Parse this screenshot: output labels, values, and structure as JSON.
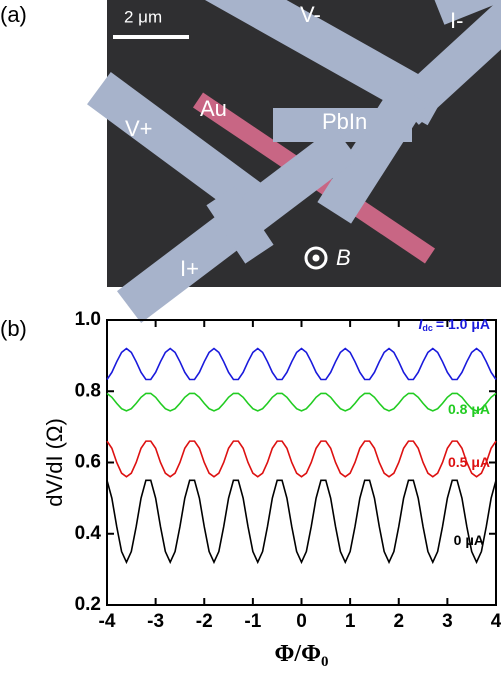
{
  "panel_a": {
    "label": "(a)",
    "scale_bar": "2 μm",
    "labels": [
      "V-",
      "I-",
      "Au",
      "V+",
      "PbIn",
      "I+"
    ],
    "field_symbol": "B"
  },
  "chart_data": {
    "type": "line",
    "panel_label": "(b)",
    "ylabel": "dV/dI (Ω)",
    "xlabel": "Φ/Φ",
    "xlabel_subscript": "0",
    "xlim": [
      -4,
      4
    ],
    "ylim": [
      0.2,
      1.0
    ],
    "xticks": [
      -4,
      -3,
      -2,
      -1,
      0,
      1,
      2,
      3,
      4
    ],
    "yticks": [
      0.2,
      0.4,
      0.6,
      0.8,
      {
        "value": 1,
        "label": "1.0"
      }
    ],
    "x": [
      -4,
      -3.9,
      -3.8,
      -3.7,
      -3.6,
      -3.5,
      -3.4,
      -3.3,
      -3.2,
      -3.1,
      -3,
      -2.9,
      -2.8,
      -2.7,
      -2.6,
      -2.5,
      -2.4,
      -2.3,
      -2.2,
      -2.1,
      -2,
      -1.9,
      -1.8,
      -1.7,
      -1.6,
      -1.5,
      -1.4,
      -1.3,
      -1.2,
      -1.1,
      -1,
      -0.9,
      -0.8,
      -0.7,
      -0.6,
      -0.5,
      -0.4,
      -0.3,
      -0.2,
      -0.1,
      0,
      0.1,
      0.2,
      0.3,
      0.4,
      0.5,
      0.6,
      0.7,
      0.8,
      0.9,
      1,
      1.1,
      1.2,
      1.3,
      1.4,
      1.5,
      1.6,
      1.7,
      1.8,
      1.9,
      2,
      2.1,
      2.2,
      2.3,
      2.4,
      2.5,
      2.6,
      2.7,
      2.8,
      2.9,
      3,
      3.1,
      3.2,
      3.3,
      3.4,
      3.5,
      3.6,
      3.7,
      3.8,
      3.9,
      4
    ],
    "series": [
      {
        "name": "= 1.0 μA",
        "label_symbol": "I",
        "label_subscript": "dc",
        "color": "#1a1adc",
        "values": [
          0.833,
          0.853,
          0.883,
          0.909,
          0.92,
          0.909,
          0.883,
          0.853,
          0.833,
          0.833,
          0.853,
          0.883,
          0.909,
          0.92,
          0.909,
          0.883,
          0.853,
          0.833,
          0.833,
          0.853,
          0.883,
          0.909,
          0.92,
          0.909,
          0.883,
          0.853,
          0.833,
          0.833,
          0.853,
          0.883,
          0.909,
          0.92,
          0.909,
          0.883,
          0.853,
          0.833,
          0.833,
          0.853,
          0.883,
          0.909,
          0.92,
          0.909,
          0.883,
          0.853,
          0.833,
          0.833,
          0.853,
          0.883,
          0.909,
          0.92,
          0.909,
          0.883,
          0.853,
          0.833,
          0.833,
          0.853,
          0.883,
          0.909,
          0.92,
          0.909,
          0.883,
          0.853,
          0.833,
          0.833,
          0.853,
          0.883,
          0.909,
          0.92,
          0.909,
          0.883,
          0.853,
          0.833,
          0.833,
          0.853,
          0.883,
          0.909,
          0.92,
          0.909,
          0.883,
          0.853,
          0.833
        ]
      },
      {
        "name": "0.8 μA",
        "color": "#22cc22",
        "values": [
          0.794,
          0.783,
          0.766,
          0.751,
          0.745,
          0.751,
          0.766,
          0.783,
          0.794,
          0.794,
          0.783,
          0.766,
          0.751,
          0.745,
          0.751,
          0.766,
          0.783,
          0.794,
          0.794,
          0.783,
          0.766,
          0.751,
          0.745,
          0.751,
          0.766,
          0.783,
          0.794,
          0.794,
          0.783,
          0.766,
          0.751,
          0.745,
          0.751,
          0.766,
          0.783,
          0.794,
          0.794,
          0.783,
          0.766,
          0.751,
          0.745,
          0.751,
          0.766,
          0.783,
          0.794,
          0.794,
          0.783,
          0.766,
          0.751,
          0.745,
          0.751,
          0.766,
          0.783,
          0.794,
          0.794,
          0.783,
          0.766,
          0.751,
          0.745,
          0.751,
          0.766,
          0.783,
          0.794,
          0.794,
          0.783,
          0.766,
          0.751,
          0.745,
          0.751,
          0.766,
          0.783,
          0.794,
          0.794,
          0.783,
          0.766,
          0.751,
          0.745,
          0.751,
          0.766,
          0.783,
          0.794
        ]
      },
      {
        "name": "0.5 μA",
        "color": "#dd1111",
        "values": [
          0.66,
          0.64,
          0.6,
          0.57,
          0.56,
          0.57,
          0.6,
          0.64,
          0.66,
          0.66,
          0.64,
          0.6,
          0.57,
          0.56,
          0.57,
          0.6,
          0.64,
          0.66,
          0.66,
          0.64,
          0.6,
          0.57,
          0.56,
          0.57,
          0.6,
          0.64,
          0.66,
          0.66,
          0.64,
          0.6,
          0.57,
          0.56,
          0.57,
          0.6,
          0.64,
          0.66,
          0.66,
          0.64,
          0.6,
          0.57,
          0.56,
          0.57,
          0.6,
          0.64,
          0.66,
          0.66,
          0.64,
          0.6,
          0.57,
          0.56,
          0.57,
          0.6,
          0.64,
          0.66,
          0.66,
          0.64,
          0.6,
          0.57,
          0.56,
          0.57,
          0.6,
          0.64,
          0.66,
          0.66,
          0.64,
          0.6,
          0.57,
          0.56,
          0.57,
          0.6,
          0.64,
          0.66,
          0.66,
          0.64,
          0.6,
          0.57,
          0.56,
          0.57,
          0.6,
          0.64,
          0.66
        ]
      },
      {
        "name": "0 μA",
        "color": "#000000",
        "values": [
          0.55,
          0.5,
          0.42,
          0.35,
          0.32,
          0.35,
          0.42,
          0.5,
          0.55,
          0.55,
          0.5,
          0.42,
          0.35,
          0.32,
          0.35,
          0.42,
          0.5,
          0.55,
          0.55,
          0.5,
          0.42,
          0.35,
          0.32,
          0.35,
          0.42,
          0.5,
          0.55,
          0.55,
          0.5,
          0.42,
          0.35,
          0.32,
          0.35,
          0.42,
          0.5,
          0.55,
          0.55,
          0.5,
          0.42,
          0.35,
          0.32,
          0.35,
          0.42,
          0.5,
          0.55,
          0.55,
          0.5,
          0.42,
          0.35,
          0.32,
          0.35,
          0.42,
          0.5,
          0.55,
          0.55,
          0.5,
          0.42,
          0.35,
          0.32,
          0.35,
          0.42,
          0.5,
          0.55,
          0.55,
          0.5,
          0.42,
          0.35,
          0.32,
          0.35,
          0.42,
          0.5,
          0.55,
          0.55,
          0.5,
          0.42,
          0.35,
          0.32,
          0.35,
          0.42,
          0.5,
          0.55
        ]
      }
    ]
  }
}
